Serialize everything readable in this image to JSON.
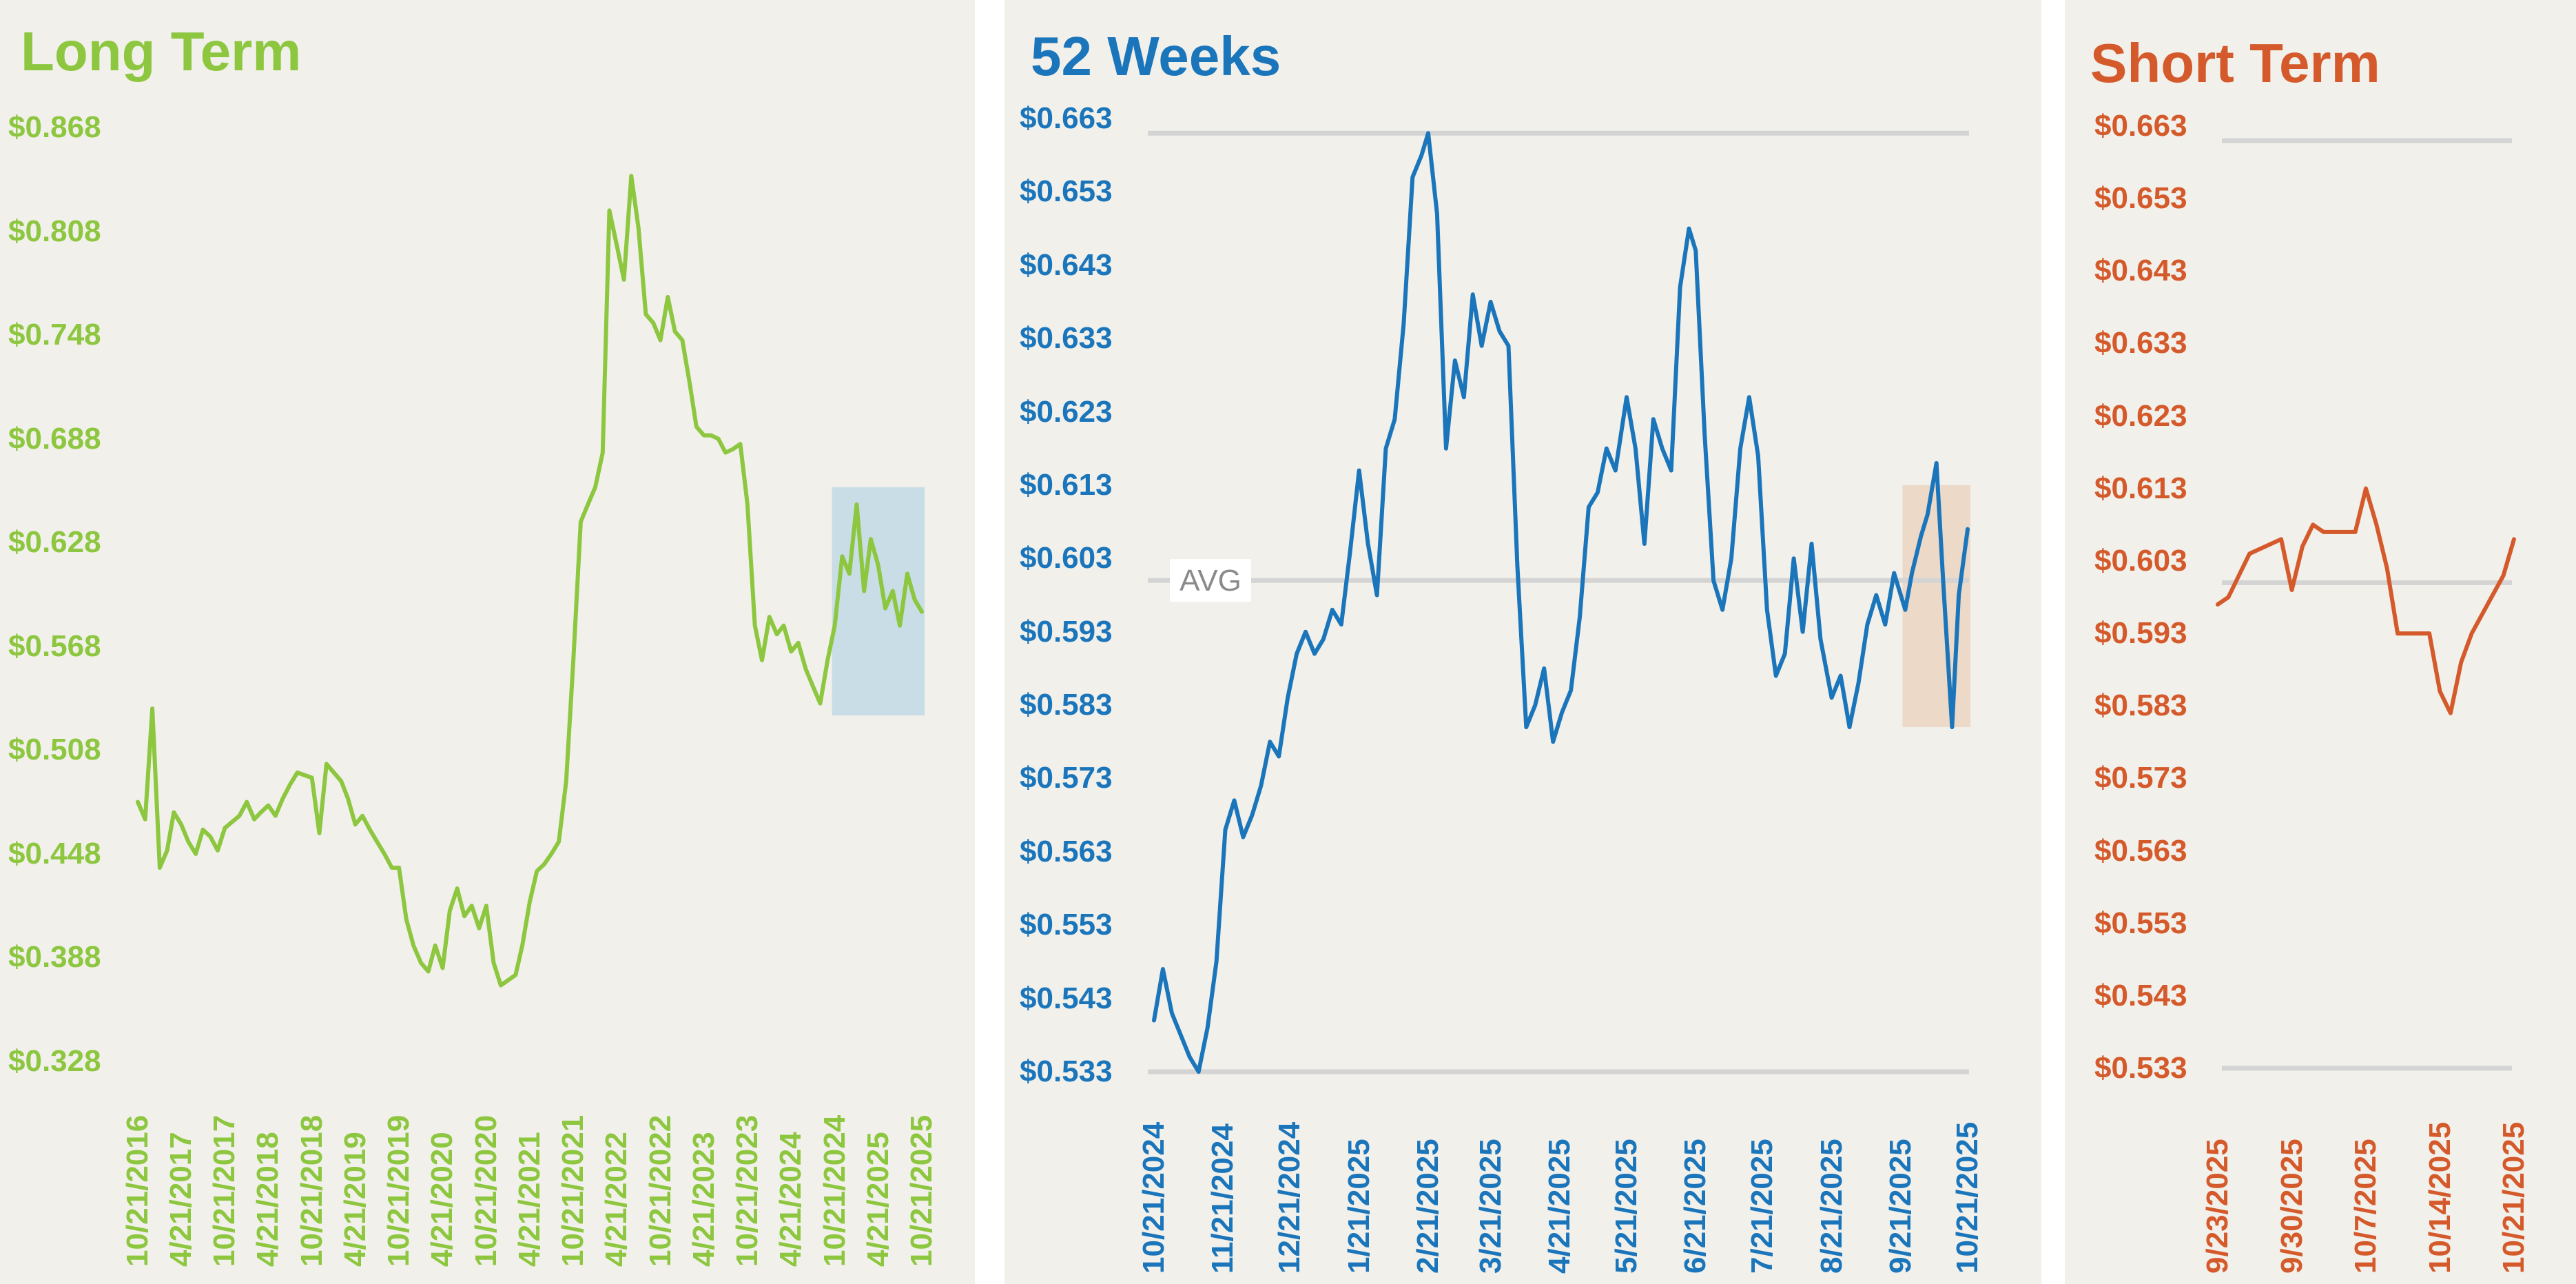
{
  "chart_data": [
    {
      "type": "line",
      "title": "Long Term",
      "color": "#8dc63f",
      "xlabel": "",
      "ylabel": "",
      "grid": false,
      "ylim": [
        0.328,
        0.868
      ],
      "yticks": [
        "$0.868",
        "$0.808",
        "$0.748",
        "$0.688",
        "$0.628",
        "$0.568",
        "$0.508",
        "$0.448",
        "$0.388",
        "$0.328"
      ],
      "x_ticks": [
        "10/21/2016",
        "4/21/2017",
        "10/21/2017",
        "4/21/2018",
        "10/21/2018",
        "4/21/2019",
        "10/21/2019",
        "4/21/2020",
        "10/21/2020",
        "4/21/2021",
        "10/21/2021",
        "4/21/2022",
        "10/21/2022",
        "4/21/2023",
        "10/21/2023",
        "4/21/2024",
        "10/21/2024",
        "4/21/2025",
        "10/21/2025"
      ],
      "highlight": {
        "from": "10/21/2024",
        "to": "10/21/2025",
        "color": "#c9dde6"
      },
      "series": [
        {
          "x": [
            "10/21/2016",
            "11/21/2016",
            "12/21/2016",
            "1/21/2017",
            "2/21/2017",
            "3/21/2017",
            "4/21/2017",
            "5/21/2017",
            "6/21/2017",
            "7/21/2017",
            "8/21/2017",
            "9/21/2017",
            "10/21/2017",
            "12/21/2017",
            "1/21/2018",
            "2/21/2018",
            "3/21/2018",
            "4/21/2018",
            "5/21/2018",
            "6/21/2018",
            "7/21/2018",
            "8/21/2018",
            "10/21/2018",
            "11/21/2018",
            "12/21/2018",
            "2/21/2019",
            "3/21/2019",
            "4/21/2019",
            "5/21/2019",
            "6/21/2019",
            "7/21/2019",
            "8/21/2019",
            "9/21/2019",
            "10/21/2019",
            "11/21/2019",
            "12/21/2019",
            "1/21/2020",
            "2/21/2020",
            "3/21/2020",
            "4/21/2020",
            "5/21/2020",
            "6/21/2020",
            "7/21/2020",
            "8/21/2020",
            "9/21/2020",
            "10/21/2020",
            "11/21/2020",
            "12/21/2020",
            "1/21/2021",
            "2/21/2021",
            "3/21/2021",
            "4/21/2021",
            "5/21/2021",
            "6/21/2021",
            "7/21/2021",
            "8/21/2021",
            "9/21/2021",
            "10/21/2021",
            "11/21/2021",
            "12/21/2021",
            "1/21/2022",
            "2/21/2022",
            "3/21/2022",
            "4/21/2022",
            "5/21/2022",
            "6/21/2022",
            "7/21/2022",
            "8/21/2022",
            "9/21/2022",
            "10/21/2022",
            "11/21/2022",
            "12/21/2022",
            "1/21/2023",
            "2/21/2023",
            "3/21/2023",
            "4/21/2023",
            "5/21/2023",
            "6/21/2023",
            "7/21/2023",
            "8/21/2023",
            "9/21/2023",
            "10/21/2023",
            "11/21/2023",
            "12/21/2023",
            "1/21/2024",
            "2/21/2024",
            "3/21/2024",
            "4/21/2024",
            "5/21/2024",
            "6/21/2024",
            "7/21/2024",
            "8/21/2024",
            "9/21/2024",
            "10/21/2024",
            "11/21/2024",
            "12/21/2024",
            "1/21/2025",
            "2/21/2025",
            "3/21/2025",
            "4/21/2025",
            "5/21/2025",
            "6/21/2025",
            "7/21/2025",
            "8/21/2025",
            "9/21/2025",
            "10/21/2025"
          ],
          "y": [
            0.478,
            0.468,
            0.532,
            0.44,
            0.45,
            0.472,
            0.465,
            0.455,
            0.448,
            0.462,
            0.458,
            0.45,
            0.463,
            0.47,
            0.478,
            0.468,
            0.472,
            0.476,
            0.47,
            0.48,
            0.488,
            0.495,
            0.492,
            0.46,
            0.5,
            0.49,
            0.48,
            0.465,
            0.47,
            0.462,
            0.455,
            0.448,
            0.44,
            0.44,
            0.41,
            0.395,
            0.385,
            0.38,
            0.395,
            0.382,
            0.415,
            0.428,
            0.412,
            0.418,
            0.405,
            0.418,
            0.385,
            0.372,
            0.375,
            0.378,
            0.395,
            0.42,
            0.438,
            0.442,
            0.448,
            0.455,
            0.49,
            0.56,
            0.64,
            0.65,
            0.66,
            0.68,
            0.82,
            0.8,
            0.78,
            0.84,
            0.81,
            0.76,
            0.755,
            0.745,
            0.77,
            0.75,
            0.745,
            0.72,
            0.695,
            0.69,
            0.69,
            0.688,
            0.68,
            0.682,
            0.685,
            0.65,
            0.58,
            0.56,
            0.585,
            0.575,
            0.58,
            0.565,
            0.57,
            0.555,
            0.545,
            0.535,
            0.56,
            0.58,
            0.62,
            0.61,
            0.65,
            0.6,
            0.63,
            0.615,
            0.59,
            0.6,
            0.58,
            0.61,
            0.595,
            0.588
          ]
        }
      ]
    },
    {
      "type": "line",
      "title": "52 Weeks",
      "color": "#1b75bb",
      "xlabel": "",
      "ylabel": "",
      "grid": false,
      "ylim": [
        0.533,
        0.663
      ],
      "reference_lines": [
        0.533,
        0.6,
        0.661
      ],
      "average_label": "AVG",
      "yticks": [
        "$0.663",
        "$0.653",
        "$0.643",
        "$0.633",
        "$0.623",
        "$0.613",
        "$0.603",
        "$0.593",
        "$0.583",
        "$0.573",
        "$0.563",
        "$0.553",
        "$0.543",
        "$0.533"
      ],
      "x_ticks": [
        "10/21/2024",
        "11/21/2024",
        "12/21/2024",
        "1/21/2025",
        "2/21/2025",
        "3/21/2025",
        "4/21/2025",
        "5/21/2025",
        "6/21/2025",
        "7/21/2025",
        "8/21/2025",
        "9/21/2025",
        "10/21/2025"
      ],
      "highlight": {
        "from": "9/23/2025",
        "to": "10/21/2025",
        "color": "#ecd9c8"
      },
      "series": [
        {
          "x": [
            "10/21/2024",
            "10/25/2024",
            "10/29/2024",
            "11/2/2024",
            "11/6/2024",
            "11/10/2024",
            "11/14/2024",
            "11/18/2024",
            "11/22/2024",
            "11/26/2024",
            "11/30/2024",
            "12/4/2024",
            "12/8/2024",
            "12/12/2024",
            "12/16/2024",
            "12/20/2024",
            "12/24/2024",
            "12/28/2024",
            "1/1/2025",
            "1/5/2025",
            "1/9/2025",
            "1/13/2025",
            "1/17/2025",
            "1/21/2025",
            "1/25/2025",
            "1/29/2025",
            "2/2/2025",
            "2/6/2025",
            "2/10/2025",
            "2/14/2025",
            "2/18/2025",
            "2/21/2025",
            "2/25/2025",
            "3/1/2025",
            "3/5/2025",
            "3/9/2025",
            "3/13/2025",
            "3/17/2025",
            "3/21/2025",
            "3/25/2025",
            "3/29/2025",
            "4/2/2025",
            "4/6/2025",
            "4/10/2025",
            "4/14/2025",
            "4/18/2025",
            "4/22/2025",
            "4/26/2025",
            "4/30/2025",
            "5/4/2025",
            "5/8/2025",
            "5/12/2025",
            "5/16/2025",
            "5/21/2025",
            "5/25/2025",
            "5/29/2025",
            "6/2/2025",
            "6/6/2025",
            "6/10/2025",
            "6/14/2025",
            "6/18/2025",
            "6/21/2025",
            "6/25/2025",
            "6/29/2025",
            "7/3/2025",
            "7/7/2025",
            "7/11/2025",
            "7/15/2025",
            "7/19/2025",
            "7/23/2025",
            "7/27/2025",
            "7/31/2025",
            "8/4/2025",
            "8/8/2025",
            "8/12/2025",
            "8/16/2025",
            "8/21/2025",
            "8/25/2025",
            "8/29/2025",
            "9/2/2025",
            "9/6/2025",
            "9/10/2025",
            "9/14/2025",
            "9/18/2025",
            "9/23/2025",
            "9/26/2025",
            "9/30/2025",
            "10/3/2025",
            "10/7/2025",
            "10/10/2025",
            "10/14/2025",
            "10/17/2025",
            "10/21/2025"
          ],
          "y": [
            0.54,
            0.547,
            0.541,
            0.538,
            0.535,
            0.533,
            0.539,
            0.548,
            0.566,
            0.57,
            0.565,
            0.568,
            0.572,
            0.578,
            0.576,
            0.584,
            0.59,
            0.593,
            0.59,
            0.592,
            0.596,
            0.594,
            0.604,
            0.615,
            0.605,
            0.598,
            0.618,
            0.622,
            0.635,
            0.655,
            0.658,
            0.661,
            0.65,
            0.618,
            0.63,
            0.625,
            0.639,
            0.632,
            0.638,
            0.634,
            0.632,
            0.602,
            0.58,
            0.583,
            0.588,
            0.578,
            0.582,
            0.585,
            0.595,
            0.61,
            0.612,
            0.618,
            0.615,
            0.625,
            0.618,
            0.605,
            0.622,
            0.618,
            0.615,
            0.64,
            0.648,
            0.645,
            0.62,
            0.6,
            0.596,
            0.603,
            0.618,
            0.625,
            0.617,
            0.596,
            0.587,
            0.59,
            0.603,
            0.593,
            0.605,
            0.592,
            0.584,
            0.587,
            0.58,
            0.586,
            0.594,
            0.598,
            0.594,
            0.601,
            0.596,
            0.601,
            0.606,
            0.609,
            0.616,
            0.6,
            0.58,
            0.598,
            0.607
          ]
        }
      ]
    },
    {
      "type": "line",
      "title": "Short Term",
      "color": "#d55a2b",
      "xlabel": "",
      "ylabel": "",
      "grid": false,
      "ylim": [
        0.533,
        0.663
      ],
      "reference_lines": [
        0.533,
        0.6,
        0.661
      ],
      "yticks": [
        "$0.663",
        "$0.653",
        "$0.643",
        "$0.633",
        "$0.623",
        "$0.613",
        "$0.603",
        "$0.593",
        "$0.583",
        "$0.573",
        "$0.563",
        "$0.553",
        "$0.543",
        "$0.533"
      ],
      "x_ticks": [
        "9/23/2025",
        "9/30/2025",
        "10/7/2025",
        "10/14/2025",
        "10/21/2025"
      ],
      "series": [
        {
          "x": [
            "9/23/2025",
            "9/24/2025",
            "9/25/2025",
            "9/26/2025",
            "9/29/2025",
            "9/30/2025",
            "10/1/2025",
            "10/2/2025",
            "10/3/2025",
            "10/6/2025",
            "10/7/2025",
            "10/8/2025",
            "10/9/2025",
            "10/10/2025",
            "10/13/2025",
            "10/14/2025",
            "10/15/2025",
            "10/16/2025",
            "10/17/2025",
            "10/20/2025",
            "10/21/2025"
          ],
          "y": [
            0.597,
            0.598,
            0.601,
            0.604,
            0.606,
            0.599,
            0.605,
            0.608,
            0.607,
            0.607,
            0.613,
            0.608,
            0.602,
            0.593,
            0.593,
            0.585,
            0.582,
            0.589,
            0.593,
            0.601,
            0.606
          ]
        }
      ]
    }
  ]
}
